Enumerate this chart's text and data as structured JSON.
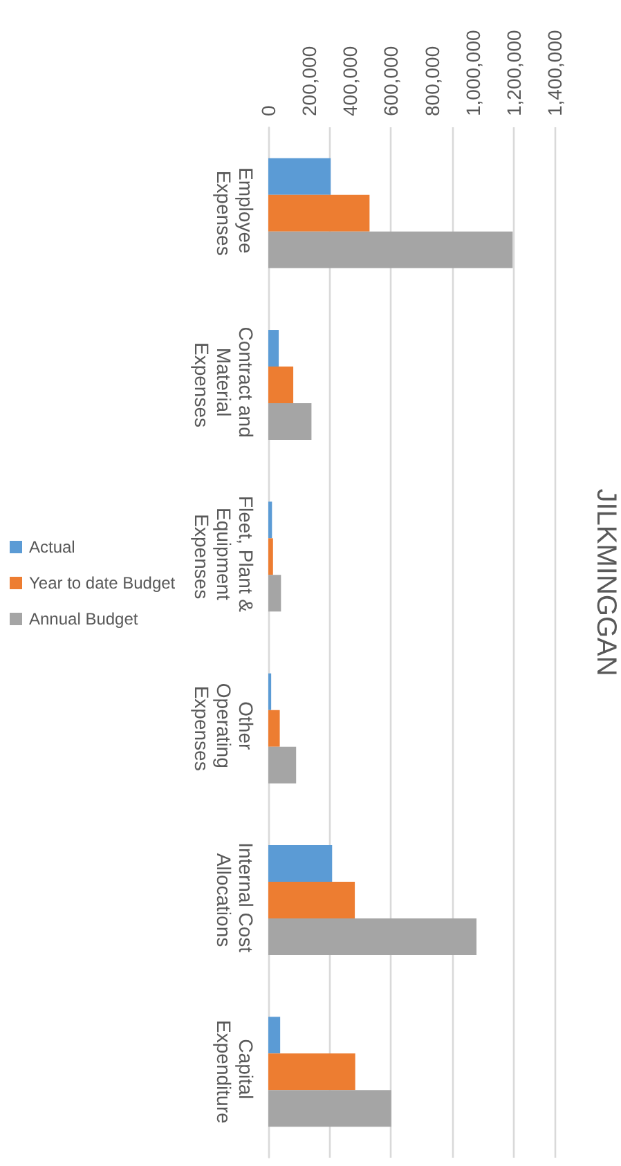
{
  "chart_data": {
    "type": "bar",
    "title": "JILKMINGGAN",
    "orientation": "horizontal",
    "categories": [
      "Employee Expenses",
      "Contract and Material Expenses",
      "Fleet, Plant & Equipment Expenses",
      "Other Operating Expenses",
      "Internal Cost Allocations",
      "Capital Expenditure"
    ],
    "series": [
      {
        "name": "Actual",
        "color": "#5b9bd5",
        "values": [
          305000,
          51000,
          18000,
          14000,
          312000,
          58000
        ]
      },
      {
        "name": "Year to date Budget",
        "color": "#ed7d31",
        "values": [
          495000,
          122000,
          23000,
          56000,
          423000,
          425000
        ]
      },
      {
        "name": "Annual Budget",
        "color": "#a5a5a5",
        "values": [
          1195000,
          211000,
          62000,
          136000,
          1018000,
          601000
        ]
      }
    ],
    "xlim": [
      0,
      1400000
    ],
    "xticks": [
      0,
      {
        "value": 200000,
        "label": "200,000"
      },
      {
        "value": 400000,
        "label": "400,000"
      },
      {
        "value": 600000,
        "label": "600,000"
      },
      {
        "value": 800000,
        "label": "800,000"
      },
      {
        "value": 1000000,
        "label": "1,000,000"
      },
      {
        "value": 1200000,
        "label": "1,200,000"
      },
      {
        "value": 1400000,
        "label": "1,400,000"
      }
    ],
    "grid": "x",
    "legend": "left"
  }
}
